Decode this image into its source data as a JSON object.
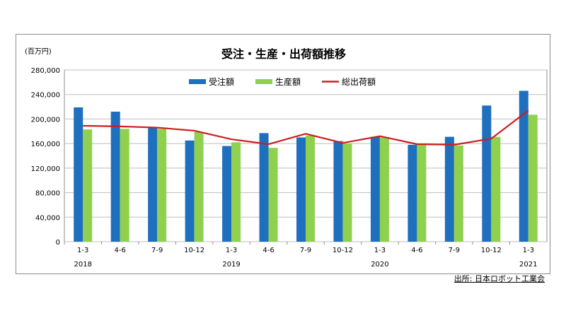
{
  "source": "出所: 日本ロボット工業会",
  "chart_data": {
    "type": "bar",
    "title": "受注・生産・出荷額推移",
    "ylabel": "(百万円)",
    "ylim": [
      0,
      280000
    ],
    "yticks": [
      "0",
      "40,000",
      "80,000",
      "120,000",
      "160,000",
      "200,000",
      "240,000",
      "280,000"
    ],
    "categories": [
      "1-3",
      "4-6",
      "7-9",
      "10-12",
      "1-3",
      "4-6",
      "7-9",
      "10-12",
      "1-3",
      "4-6",
      "7-9",
      "10-12",
      "1-3"
    ],
    "years": [
      {
        "label": "2018",
        "index": 0
      },
      {
        "label": "2019",
        "index": 4
      },
      {
        "label": "2020",
        "index": 8
      },
      {
        "label": "2021",
        "index": 12
      }
    ],
    "grid": true,
    "legend": "top-center",
    "series": [
      {
        "name": "受注額",
        "type": "bar",
        "color": "#1f6fbf",
        "values": [
          219000,
          212000,
          187000,
          165000,
          156000,
          177000,
          170000,
          164000,
          171000,
          158000,
          171000,
          222000,
          246000
        ]
      },
      {
        "name": "生産額",
        "type": "bar",
        "color": "#8fd14f",
        "values": [
          183000,
          184000,
          184000,
          179000,
          162000,
          153000,
          173000,
          160000,
          170000,
          158000,
          157000,
          171000,
          207000
        ]
      },
      {
        "name": "総出荷額",
        "type": "line",
        "color": "#cc1f1f",
        "values": [
          189000,
          188000,
          186000,
          181000,
          167000,
          159000,
          176000,
          161000,
          172000,
          159000,
          158000,
          168000,
          214000
        ]
      }
    ]
  }
}
